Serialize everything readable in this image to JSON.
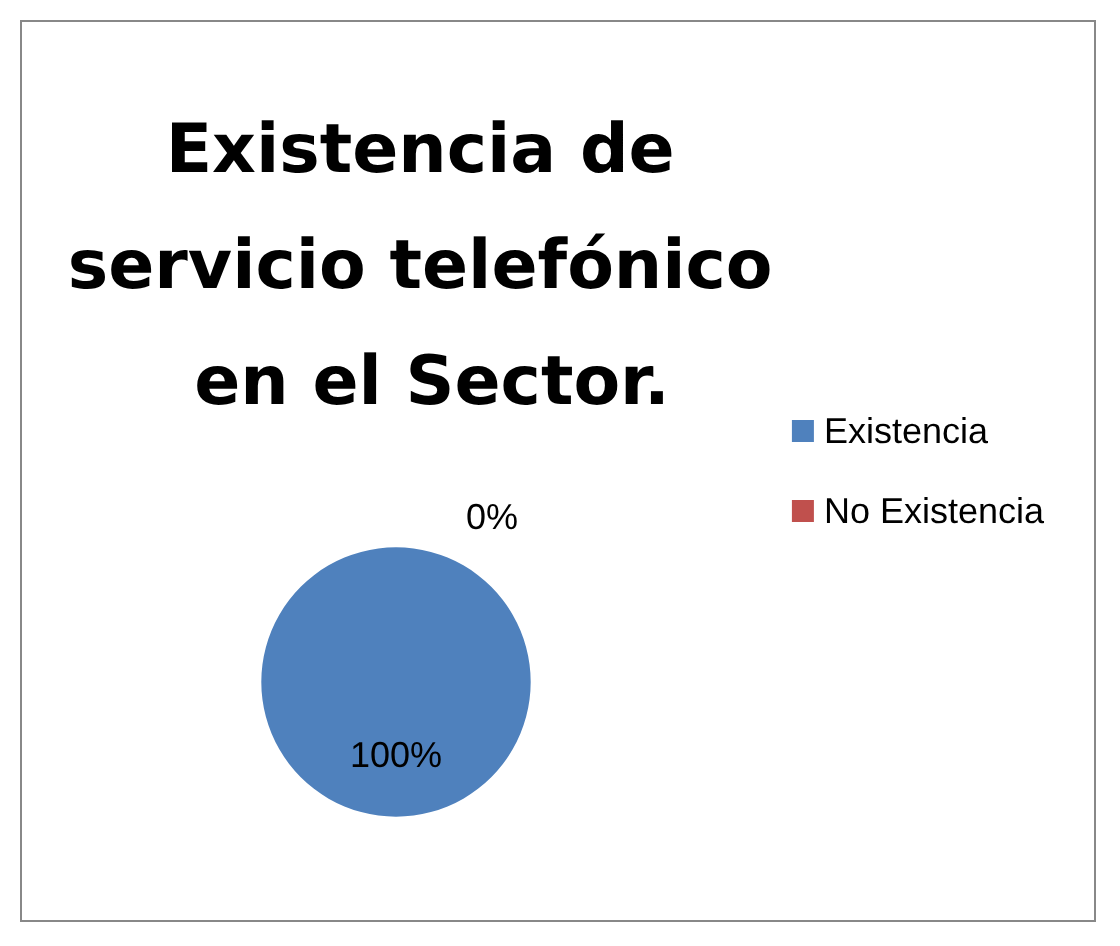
{
  "chart_data": {
    "type": "pie",
    "title": "Existencia de servicio telefónico en el Sector.",
    "categories": [
      "Existencia",
      "No Existencia"
    ],
    "values": [
      100,
      0
    ],
    "colors": [
      "#4f81bd",
      "#c0504d"
    ],
    "value_labels": [
      "100%",
      "0%"
    ],
    "legend": "right"
  }
}
